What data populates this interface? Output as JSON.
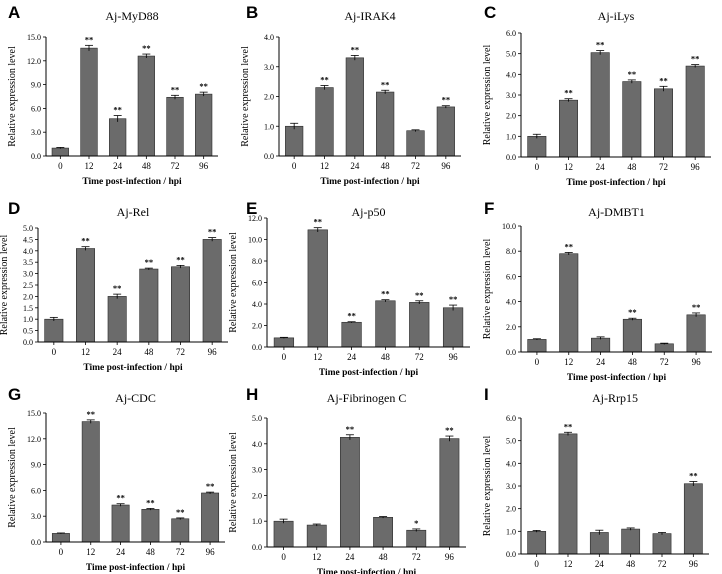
{
  "chart_data": [
    {
      "letter": "A",
      "type": "bar",
      "title": "Aj-MyD88",
      "categories": [
        "0",
        "12",
        "24",
        "48",
        "72",
        "96"
      ],
      "values": [
        1.0,
        13.6,
        4.7,
        12.6,
        7.4,
        7.8
      ],
      "errors": [
        0.08,
        0.35,
        0.4,
        0.25,
        0.25,
        0.25
      ],
      "significance": [
        "",
        "**",
        "**",
        "**",
        "**",
        "**"
      ],
      "ylim": [
        0,
        15.0
      ],
      "yticks": [
        "0.0",
        "3.0",
        "6.0",
        "9.0",
        "12.0",
        "15.0"
      ],
      "xlabel": "Time post-infection / hpi",
      "ylabel": "Relative expression level"
    },
    {
      "letter": "B",
      "type": "bar",
      "title": "Aj-IRAK4",
      "categories": [
        "0",
        "12",
        "24",
        "48",
        "72",
        "96"
      ],
      "values": [
        1.0,
        2.3,
        3.3,
        2.15,
        0.85,
        1.65
      ],
      "errors": [
        0.1,
        0.07,
        0.08,
        0.06,
        0.03,
        0.04
      ],
      "significance": [
        "",
        "**",
        "**",
        "**",
        "",
        "**"
      ],
      "ylim": [
        0,
        4.0
      ],
      "yticks": [
        "0.0",
        "1.0",
        "2.0",
        "3.0",
        "4.0"
      ],
      "xlabel": "Time post-infection / hpi",
      "ylabel": "Relative expression level"
    },
    {
      "letter": "C",
      "type": "bar",
      "title": "Aj-iLys",
      "categories": [
        "0",
        "12",
        "24",
        "48",
        "72",
        "96"
      ],
      "values": [
        1.0,
        2.75,
        5.05,
        3.65,
        3.3,
        4.4
      ],
      "errors": [
        0.1,
        0.07,
        0.1,
        0.08,
        0.12,
        0.07
      ],
      "significance": [
        "",
        "**",
        "**",
        "**",
        "**",
        "**"
      ],
      "ylim": [
        0,
        6.0
      ],
      "yticks": [
        "0.0",
        "1.0",
        "2.0",
        "3.0",
        "4.0",
        "5.0",
        "6.0"
      ],
      "xlabel": "Time post-infection / hpi",
      "ylabel": "Relative expression level"
    },
    {
      "letter": "D",
      "type": "bar",
      "title": "Aj-Rel",
      "categories": [
        "0",
        "12",
        "24",
        "48",
        "72",
        "96"
      ],
      "values": [
        1.0,
        4.1,
        2.0,
        3.2,
        3.3,
        4.5
      ],
      "errors": [
        0.08,
        0.08,
        0.1,
        0.04,
        0.06,
        0.08
      ],
      "significance": [
        "",
        "**",
        "**",
        "**",
        "**",
        "**"
      ],
      "ylim": [
        0,
        5.0
      ],
      "yticks": [
        "0.0",
        "0.5",
        "1.0",
        "1.5",
        "2.0",
        "2.5",
        "3.0",
        "3.5",
        "4.0",
        "4.5",
        "5.0"
      ],
      "xlabel": "Time post-infection / hpi",
      "ylabel": "Relative expression level"
    },
    {
      "letter": "E",
      "type": "bar",
      "title": "Aj-p50",
      "categories": [
        "0",
        "12",
        "24",
        "48",
        "72",
        "96"
      ],
      "values": [
        0.85,
        10.9,
        2.3,
        4.3,
        4.15,
        3.65
      ],
      "errors": [
        0.05,
        0.2,
        0.05,
        0.1,
        0.15,
        0.25
      ],
      "significance": [
        "",
        "**",
        "**",
        "**",
        "**",
        "**"
      ],
      "ylim": [
        0,
        12.0
      ],
      "yticks": [
        "0.0",
        "2.0",
        "4.0",
        "6.0",
        "8.0",
        "10.0",
        "12.0"
      ],
      "xlabel": "Time post-infection / hpi",
      "ylabel": "Relative expression level"
    },
    {
      "letter": "F",
      "type": "bar",
      "title": "Aj-DMBT1",
      "categories": [
        "0",
        "12",
        "24",
        "48",
        "72",
        "96"
      ],
      "values": [
        1.0,
        7.8,
        1.1,
        2.6,
        0.65,
        2.95
      ],
      "errors": [
        0.05,
        0.1,
        0.1,
        0.08,
        0.05,
        0.15
      ],
      "significance": [
        "",
        "**",
        "",
        "**",
        "",
        "**"
      ],
      "ylim": [
        0,
        10.0
      ],
      "yticks": [
        "0.0",
        "2.0",
        "4.0",
        "6.0",
        "8.0",
        "10.0"
      ],
      "xlabel": "Time post-infection / hpi",
      "ylabel": "Relative expression level"
    },
    {
      "letter": "G",
      "type": "bar",
      "title": "Aj-CDC",
      "categories": [
        "0",
        "12",
        "24",
        "48",
        "72",
        "96"
      ],
      "values": [
        1.0,
        14.0,
        4.3,
        3.8,
        2.7,
        5.7
      ],
      "errors": [
        0.05,
        0.2,
        0.15,
        0.1,
        0.1,
        0.1
      ],
      "significance": [
        "",
        "**",
        "**",
        "**",
        "**",
        "**"
      ],
      "ylim": [
        0,
        15.0
      ],
      "yticks": [
        "0.0",
        "3.0",
        "6.0",
        "9.0",
        "12.0",
        "15.0"
      ],
      "xlabel": "Time post-infection / hpi",
      "ylabel": "Relative expression level"
    },
    {
      "letter": "H",
      "type": "bar",
      "title": "Aj-Fibrinogen C",
      "categories": [
        "0",
        "12",
        "24",
        "48",
        "72",
        "96"
      ],
      "values": [
        1.0,
        0.85,
        4.25,
        1.15,
        0.65,
        4.2
      ],
      "errors": [
        0.08,
        0.04,
        0.1,
        0.03,
        0.05,
        0.1
      ],
      "significance": [
        "",
        "",
        "**",
        "",
        "*",
        "**"
      ],
      "ylim": [
        0,
        5.0
      ],
      "yticks": [
        "0.0",
        "1.0",
        "2.0",
        "3.0",
        "4.0",
        "5.0"
      ],
      "xlabel": "Time post-infection / hpi",
      "ylabel": "Relative expression level"
    },
    {
      "letter": "I",
      "type": "bar",
      "title": "Aj-Rrp15",
      "categories": [
        "0",
        "12",
        "24",
        "48",
        "72",
        "96"
      ],
      "values": [
        1.0,
        5.3,
        0.95,
        1.1,
        0.9,
        3.1
      ],
      "errors": [
        0.04,
        0.07,
        0.1,
        0.05,
        0.05,
        0.1
      ],
      "significance": [
        "",
        "**",
        "",
        "",
        "",
        "**"
      ],
      "ylim": [
        0,
        6.0
      ],
      "yticks": [
        "0.0",
        "1.0",
        "2.0",
        "3.0",
        "4.0",
        "5.0",
        "6.0"
      ],
      "xlabel": "Time post-infection / hpi",
      "ylabel": "Relative expression level"
    }
  ],
  "colors": {
    "bar": "#6b6b6b",
    "bar_edge": "#2a2a2a",
    "axis": "#000000"
  }
}
